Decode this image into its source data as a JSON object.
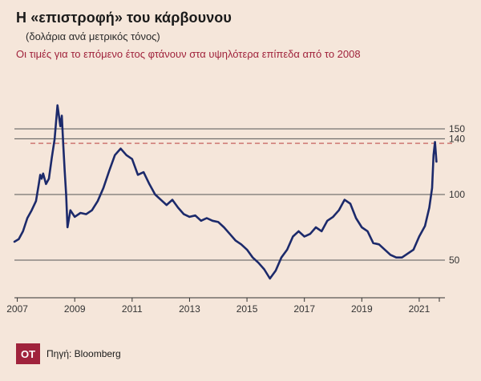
{
  "header": {
    "title": "Η «επιστροφή» του κάρβουνου",
    "subtitle": "(δολάρια ανά μετρικός τόνος)",
    "annotation": "Οι τιμές για το επόμενο έτος φτάνουν στα υψηλότερα επίπεδα από το 2008"
  },
  "footer": {
    "logo": "OT",
    "source": "Πηγή: Bloomberg"
  },
  "colors": {
    "background": "#f5e6da",
    "line": "#1c2a6b",
    "annotation": "#a0233c",
    "reference_line": "#c0504d",
    "grid": "#555555"
  },
  "chart_data": {
    "type": "line",
    "title": "Η «επιστροφή» του κάρβουνου",
    "ylabel": "(δολάρια ανά μετρικός τόνος)",
    "ylim": [
      25,
      175
    ],
    "xlim": [
      2006.9,
      2021.7
    ],
    "yticks": [
      50,
      100,
      150
    ],
    "ytick_labels_extra": [
      {
        "value": 140,
        "label": "140"
      }
    ],
    "xticks": [
      2007,
      2009,
      2011,
      2013,
      2015,
      2017,
      2019,
      2021
    ],
    "reference_line": {
      "y": 139,
      "style": "dashed"
    },
    "grid": true,
    "series": [
      {
        "name": "",
        "x": [
          2006.9,
          2007.05,
          2007.2,
          2007.35,
          2007.5,
          2007.65,
          2007.75,
          2007.8,
          2007.85,
          2007.9,
          2008.0,
          2008.1,
          2008.2,
          2008.3,
          2008.4,
          2008.5,
          2008.55,
          2008.6,
          2008.65,
          2008.7,
          2008.75,
          2008.85,
          2009.0,
          2009.2,
          2009.4,
          2009.6,
          2009.8,
          2010.0,
          2010.2,
          2010.4,
          2010.6,
          2010.8,
          2011.0,
          2011.2,
          2011.4,
          2011.6,
          2011.8,
          2012.0,
          2012.2,
          2012.4,
          2012.6,
          2012.8,
          2013.0,
          2013.2,
          2013.4,
          2013.6,
          2013.8,
          2014.0,
          2014.2,
          2014.4,
          2014.6,
          2014.8,
          2015.0,
          2015.2,
          2015.4,
          2015.6,
          2015.8,
          2016.0,
          2016.2,
          2016.4,
          2016.6,
          2016.8,
          2017.0,
          2017.2,
          2017.4,
          2017.6,
          2017.8,
          2018.0,
          2018.2,
          2018.4,
          2018.6,
          2018.8,
          2019.0,
          2019.2,
          2019.4,
          2019.6,
          2019.8,
          2020.0,
          2020.2,
          2020.4,
          2020.6,
          2020.8,
          2021.0,
          2021.2,
          2021.35,
          2021.45,
          2021.5,
          2021.55,
          2021.6
        ],
        "values": [
          64,
          66,
          72,
          82,
          88,
          95,
          108,
          115,
          112,
          116,
          108,
          112,
          128,
          142,
          168,
          152,
          160,
          138,
          118,
          100,
          75,
          88,
          83,
          86,
          85,
          88,
          95,
          105,
          118,
          130,
          135,
          130,
          127,
          115,
          117,
          108,
          100,
          96,
          92,
          96,
          90,
          85,
          83,
          84,
          80,
          82,
          80,
          79,
          75,
          70,
          65,
          62,
          58,
          52,
          48,
          43,
          36,
          42,
          52,
          58,
          68,
          72,
          68,
          70,
          75,
          72,
          80,
          83,
          88,
          96,
          93,
          82,
          75,
          72,
          63,
          62,
          58,
          54,
          52,
          52,
          55,
          58,
          68,
          76,
          90,
          105,
          130,
          140,
          125
        ]
      }
    ]
  }
}
